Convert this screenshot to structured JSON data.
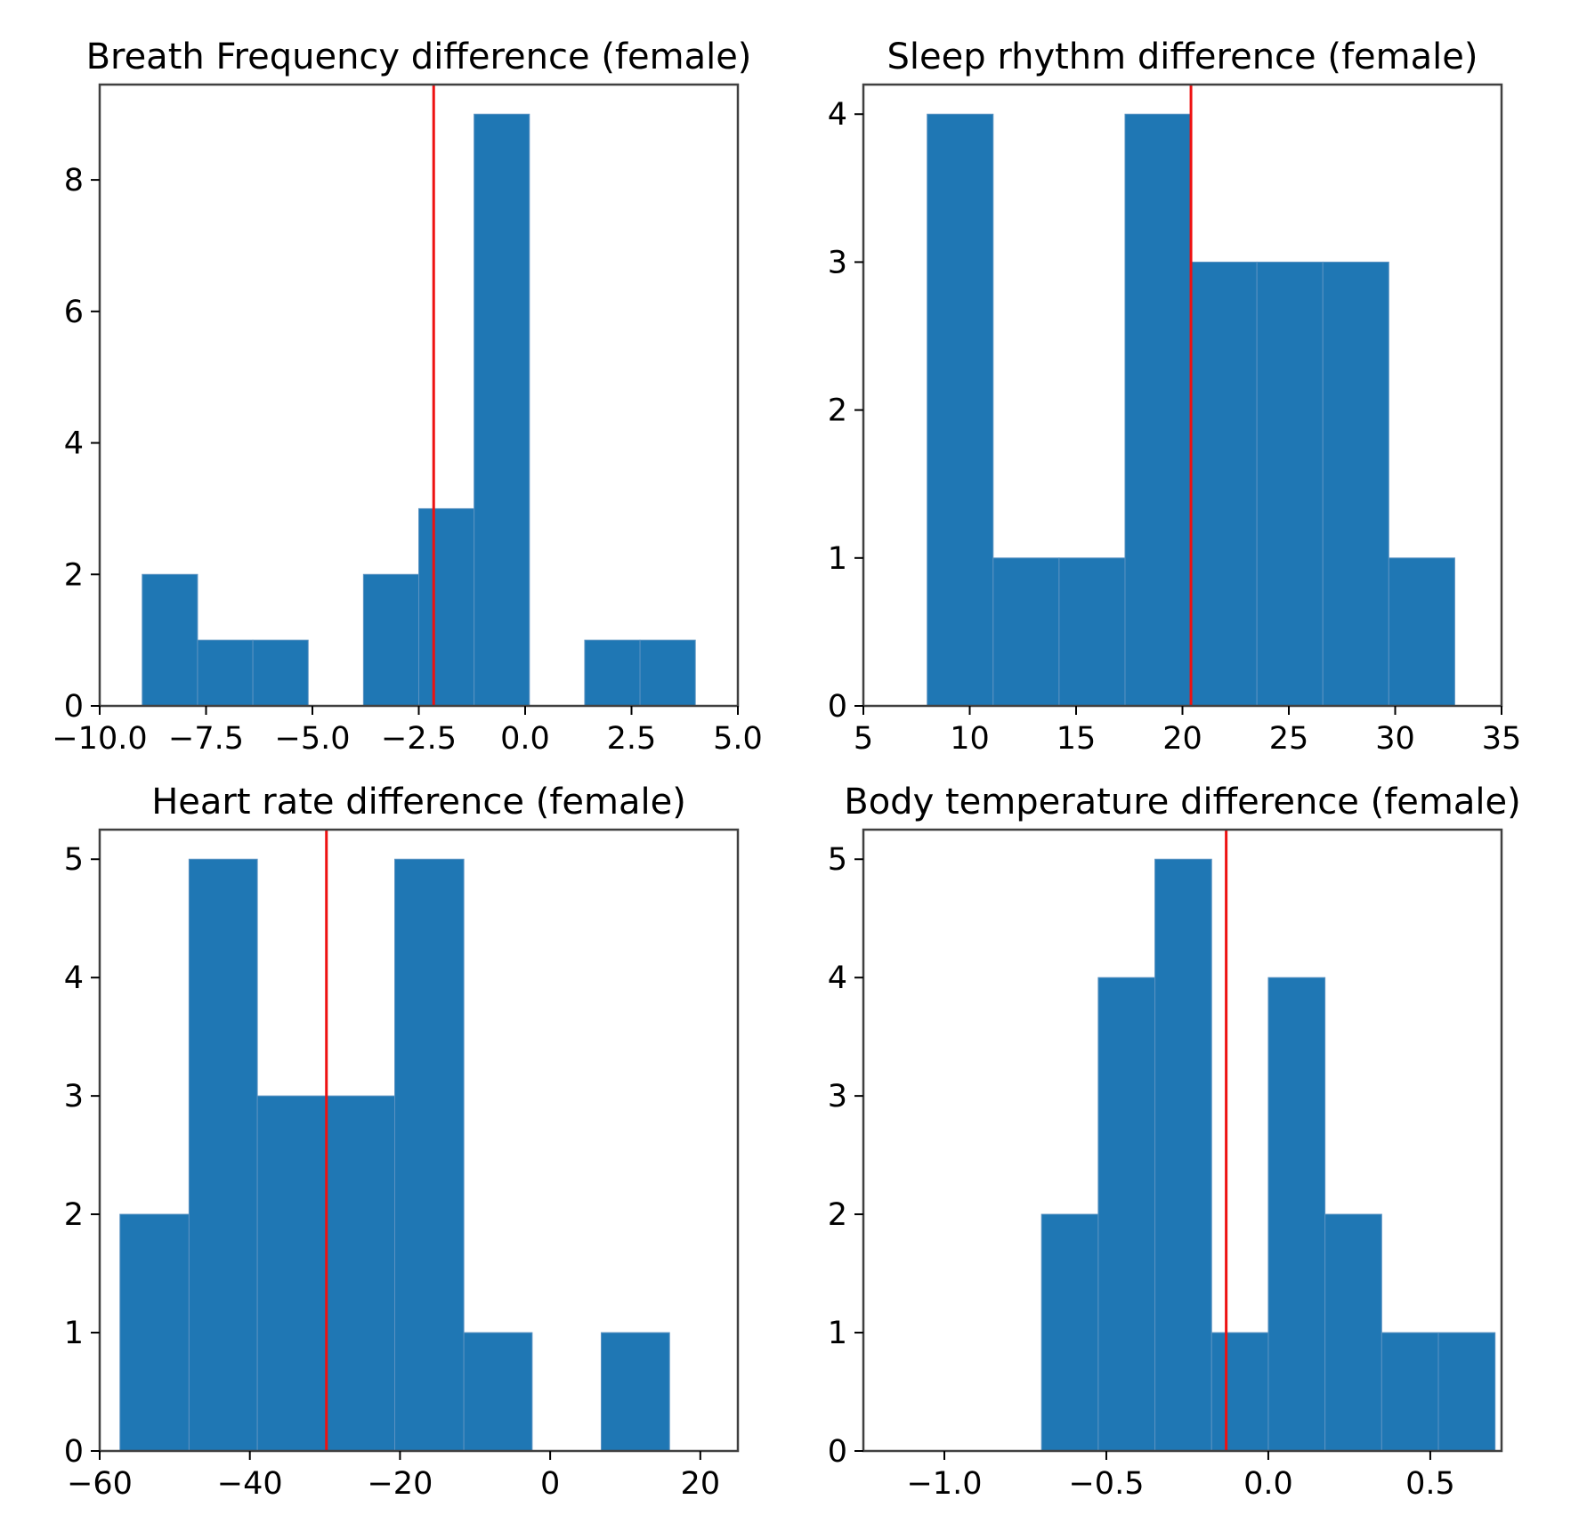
{
  "chart_data": [
    {
      "type": "bar",
      "title": "Breath Frequency difference (female)",
      "xlim": [
        -10.0,
        5.0
      ],
      "ylim": [
        0,
        9.45
      ],
      "xticks": [
        -10.0,
        -7.5,
        -5.0,
        -2.5,
        0.0,
        2.5,
        5.0
      ],
      "xtick_labels": [
        "−10.0",
        "−7.5",
        "−5.0",
        "−2.5",
        "0.0",
        "2.5",
        "5.0"
      ],
      "yticks": [
        0,
        2,
        4,
        6,
        8
      ],
      "ytick_labels": [
        "0",
        "2",
        "4",
        "6",
        "8"
      ],
      "bin_edges": [
        -9.0,
        -7.7,
        -6.4,
        -5.1,
        -3.8,
        -2.5,
        -1.2,
        0.1,
        1.4,
        2.7,
        4.0
      ],
      "counts": [
        2,
        1,
        1,
        0,
        2,
        3,
        9,
        0,
        1,
        1
      ],
      "mean_line": -2.15,
      "grid": false,
      "legend": "none"
    },
    {
      "type": "bar",
      "title": "Sleep rhythm difference (female)",
      "xlim": [
        5,
        35
      ],
      "ylim": [
        0,
        4.2
      ],
      "xticks": [
        5,
        10,
        15,
        20,
        25,
        30,
        35
      ],
      "xtick_labels": [
        "5",
        "10",
        "15",
        "20",
        "25",
        "30",
        "35"
      ],
      "yticks": [
        0,
        1,
        2,
        3,
        4
      ],
      "ytick_labels": [
        "0",
        "1",
        "2",
        "3",
        "4"
      ],
      "bin_edges": [
        8.0,
        11.1,
        14.2,
        17.3,
        20.4,
        23.5,
        26.6,
        29.7,
        32.8
      ],
      "counts": [
        4,
        1,
        1,
        4,
        3,
        3,
        3,
        1
      ],
      "mean_line": 20.4,
      "grid": false,
      "legend": "none"
    },
    {
      "type": "bar",
      "title": "Heart rate difference (female)",
      "xlim": [
        -60,
        25
      ],
      "ylim": [
        0,
        5.25
      ],
      "xticks": [
        -60,
        -40,
        -20,
        0,
        20
      ],
      "xtick_labels": [
        "−60",
        "−40",
        "−20",
        "0",
        "20"
      ],
      "yticks": [
        0,
        1,
        2,
        3,
        4,
        5
      ],
      "ytick_labels": [
        "0",
        "1",
        "2",
        "3",
        "4",
        "5"
      ],
      "bin_edges": [
        -57.3,
        -48.1,
        -39.0,
        -29.8,
        -20.7,
        -11.5,
        -2.4,
        6.8,
        15.9
      ],
      "counts": [
        2,
        5,
        3,
        3,
        5,
        1,
        0,
        1
      ],
      "mean_line": -29.8,
      "grid": false,
      "legend": "none"
    },
    {
      "type": "bar",
      "title": "Body temperature difference (female)",
      "xlim": [
        -1.25,
        0.72
      ],
      "ylim": [
        0,
        5.25
      ],
      "xticks": [
        -1.0,
        -0.5,
        0.0,
        0.5
      ],
      "xtick_labels": [
        "−1.0",
        "−0.5",
        "0.0",
        "0.5"
      ],
      "yticks": [
        0,
        1,
        2,
        3,
        4,
        5
      ],
      "ytick_labels": [
        "0",
        "1",
        "2",
        "3",
        "4",
        "5"
      ],
      "bin_edges": [
        -0.7,
        -0.525,
        -0.35,
        -0.175,
        0.0,
        0.175,
        0.35,
        0.525,
        0.7
      ],
      "counts": [
        2,
        4,
        5,
        1,
        4,
        2,
        1,
        1
      ],
      "mean_line": -0.13,
      "grid": false,
      "legend": "none"
    }
  ]
}
